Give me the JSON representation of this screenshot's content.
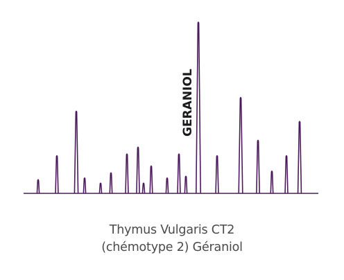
{
  "chart_data": {
    "type": "line",
    "subtype": "chromatogram",
    "peak_annotation": "GERANIOL",
    "annotated_peak_index": 16,
    "line_color": "#4b1a5c",
    "baseline_color": "#4b1a5c",
    "ylim": [
      0,
      100
    ],
    "peaks": [
      {
        "x": 55,
        "y": 8
      },
      {
        "x": 82,
        "y": 22
      },
      {
        "x": 110,
        "y": 48
      },
      {
        "x": 122,
        "y": 9
      },
      {
        "x": 145,
        "y": 6
      },
      {
        "x": 160,
        "y": 12
      },
      {
        "x": 183,
        "y": 23
      },
      {
        "x": 199,
        "y": 27
      },
      {
        "x": 207,
        "y": 6
      },
      {
        "x": 218,
        "y": 16
      },
      {
        "x": 241,
        "y": 9
      },
      {
        "x": 258,
        "y": 23
      },
      {
        "x": 268,
        "y": 10
      },
      {
        "x": 286,
        "y": 100
      },
      {
        "x": 313,
        "y": 22
      },
      {
        "x": 347,
        "y": 56
      },
      {
        "x": 372,
        "y": 31
      },
      {
        "x": 392,
        "y": 13
      },
      {
        "x": 413,
        "y": 22
      },
      {
        "x": 432,
        "y": 42
      }
    ]
  },
  "caption": {
    "line1": "Thymus Vulgaris CT2",
    "line2": "(chémotype 2) Géraniol"
  }
}
